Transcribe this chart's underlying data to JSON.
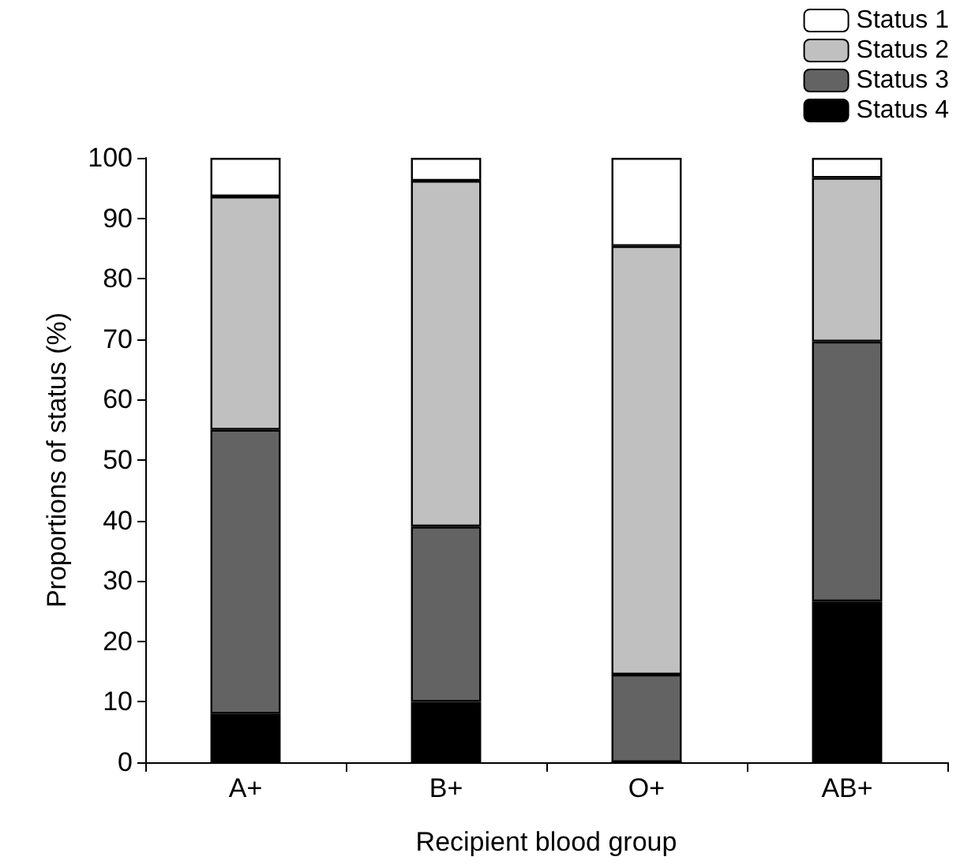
{
  "chart_data": {
    "type": "bar",
    "stacked": true,
    "xlabel": "Recipient blood group",
    "ylabel": "Proportions of status (%)",
    "categories": [
      "A+",
      "B+",
      "O+",
      "AB+"
    ],
    "series": [
      {
        "name": "Status 4",
        "color": "#000000",
        "values": [
          8,
          10,
          0,
          26.6
        ]
      },
      {
        "name": "Status 3",
        "color": "#636363",
        "values": [
          47,
          29,
          14.5,
          43
        ]
      },
      {
        "name": "Status 2",
        "color": "#c0c0c0",
        "values": [
          38.6,
          57.2,
          70.9,
          27.1
        ]
      },
      {
        "name": "Status 1",
        "color": "#ffffff",
        "values": [
          6.4,
          3.8,
          14.6,
          3.3
        ]
      }
    ],
    "ylim": [
      0,
      100
    ],
    "yticks": [
      0,
      10,
      20,
      30,
      40,
      50,
      60,
      70,
      80,
      90,
      100
    ],
    "grid": false,
    "legend": "top right"
  }
}
